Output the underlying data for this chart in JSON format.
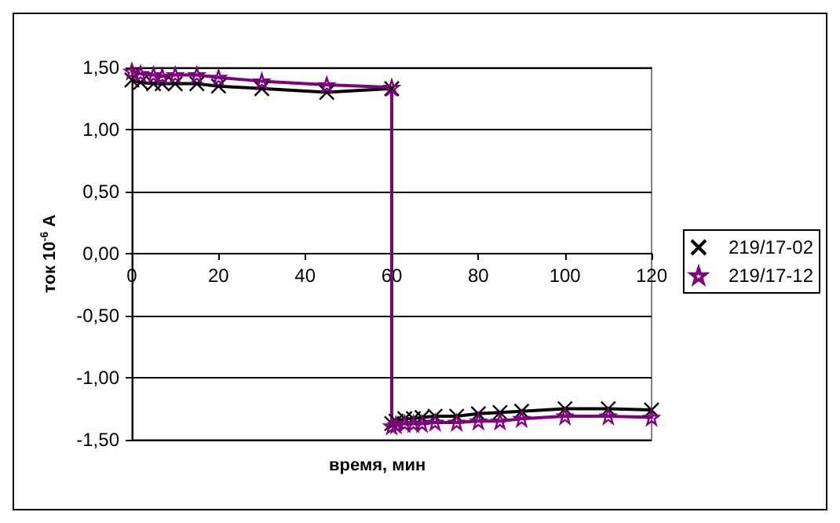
{
  "chart_data": {
    "type": "line",
    "xlabel": "время, мин",
    "ylabel": "ток 10$^{-6}$ А",
    "xlim": [
      0,
      120
    ],
    "xticks": [
      0,
      20,
      40,
      60,
      80,
      100,
      120
    ],
    "ylim": [
      -1.5,
      1.5
    ],
    "yticks": [
      {
        "value": -1.5,
        "label": "-1,50"
      },
      {
        "value": -1,
        "label": "-1,00"
      },
      {
        "value": -0.5,
        "label": "-0,50"
      },
      {
        "value": 0,
        "label": "0,00"
      },
      {
        "value": 0.5,
        "label": "0,50"
      },
      {
        "value": 1,
        "label": "1,00"
      },
      {
        "value": 1.5,
        "label": "1,50"
      }
    ],
    "grid": "y",
    "legend": "right",
    "line_style": "solid",
    "series": [
      {
        "name": "219/17-02",
        "color": "#000000",
        "marker": "cross",
        "x": [
          0,
          2,
          5,
          7,
          10,
          15,
          20,
          30,
          45,
          60,
          60,
          61,
          63,
          65,
          67,
          70,
          75,
          80,
          85,
          90,
          100,
          110,
          120
        ],
        "values": [
          1.4,
          1.38,
          1.37,
          1.37,
          1.37,
          1.37,
          1.35,
          1.33,
          1.3,
          1.33,
          -1.37,
          -1.35,
          -1.33,
          -1.33,
          -1.32,
          -1.31,
          -1.31,
          -1.29,
          -1.28,
          -1.27,
          -1.25,
          -1.25,
          -1.26
        ]
      },
      {
        "name": "219/17-12",
        "color": "#800080",
        "marker": "star",
        "x": [
          0,
          2,
          5,
          7,
          10,
          15,
          20,
          30,
          45,
          60,
          60,
          61,
          63,
          65,
          67,
          70,
          75,
          80,
          85,
          90,
          100,
          110,
          120
        ],
        "values": [
          1.47,
          1.45,
          1.44,
          1.43,
          1.44,
          1.44,
          1.42,
          1.39,
          1.36,
          1.34,
          -1.39,
          -1.38,
          -1.37,
          -1.37,
          -1.37,
          -1.36,
          -1.36,
          -1.35,
          -1.35,
          -1.33,
          -1.31,
          -1.31,
          -1.32
        ]
      }
    ]
  }
}
